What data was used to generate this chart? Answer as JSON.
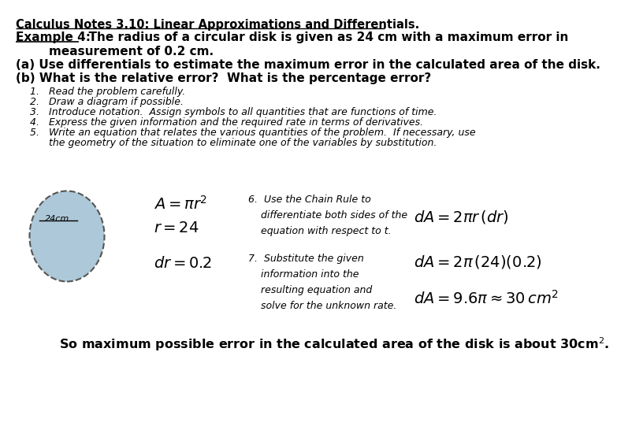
{
  "bg": "#ffffff",
  "tc": "#000000",
  "circle_fill": "#adc8d8",
  "circle_edge": "#555555",
  "title": "Calculus Notes 3.10: Linear Approximations and Differentials.",
  "ex_label": "Example 4:",
  "ex_rest": "  The radius of a circular disk is given as 24 cm with a maximum error in",
  "ex_line2": "        measurement of 0.2 cm.",
  "line_a": "(a) Use differentials to estimate the maximum error in the calculated area of the disk.",
  "line_b": "(b) What is the relative error?  What is the percentage error?",
  "step1": "1.   Read the problem carefully.",
  "step2": "2.   Draw a diagram if possible.",
  "step3": "3.   Introduce notation.  Assign symbols to all quantities that are functions of time.",
  "step4": "4.   Express the given information and the required rate in terms of derivatives.",
  "step5a": "5.   Write an equation that relates the various quantities of the problem.  If necessary, use",
  "step5b": "      the geometry of the situation to eliminate one of the variables by substitution.",
  "step6": "6.  Use the Chain Rule to\n    differentiate both sides of the\n    equation with respect to t.",
  "step7": "7.  Substitute the given\n    information into the\n    resulting equation and\n    solve for the unknown rate.",
  "eq1": "$A = \\pi r^{2}$",
  "eq2": "$r = 24$",
  "eq3": "$dr = 0.2$",
  "eq4": "$dA = 2\\pi r\\,(dr)$",
  "eq5": "$dA = 2\\pi\\,(24)(0.2)$",
  "eq6": "$dA = 9.6\\pi \\approx 30\\,cm^{2}$",
  "concl": "So maximum possible error in the calculated area of the disk is about 30cm",
  "circle_label": "24cm"
}
